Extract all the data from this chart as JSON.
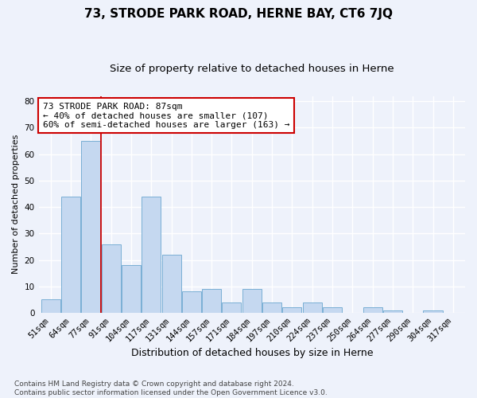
{
  "title": "73, STRODE PARK ROAD, HERNE BAY, CT6 7JQ",
  "subtitle": "Size of property relative to detached houses in Herne",
  "xlabel": "Distribution of detached houses by size in Herne",
  "ylabel": "Number of detached properties",
  "categories": [
    "51sqm",
    "64sqm",
    "77sqm",
    "91sqm",
    "104sqm",
    "117sqm",
    "131sqm",
    "144sqm",
    "157sqm",
    "171sqm",
    "184sqm",
    "197sqm",
    "210sqm",
    "224sqm",
    "237sqm",
    "250sqm",
    "264sqm",
    "277sqm",
    "290sqm",
    "304sqm",
    "317sqm"
  ],
  "values": [
    5,
    44,
    65,
    26,
    18,
    44,
    22,
    8,
    9,
    4,
    9,
    4,
    2,
    4,
    2,
    0,
    2,
    1,
    0,
    1,
    0
  ],
  "bar_color": "#c5d8f0",
  "bar_edge_color": "#7aafd4",
  "vline_index": 2.5,
  "vline_color": "#cc0000",
  "annotation_text": "73 STRODE PARK ROAD: 87sqm\n← 40% of detached houses are smaller (107)\n60% of semi-detached houses are larger (163) →",
  "annotation_box_color": "#ffffff",
  "annotation_box_edge": "#cc0000",
  "ylim": [
    0,
    82
  ],
  "yticks": [
    0,
    10,
    20,
    30,
    40,
    50,
    60,
    70,
    80
  ],
  "footer": "Contains HM Land Registry data © Crown copyright and database right 2024.\nContains public sector information licensed under the Open Government Licence v3.0.",
  "bg_color": "#eef2fb",
  "grid_color": "#ffffff",
  "title_fontsize": 11,
  "subtitle_fontsize": 9.5,
  "xlabel_fontsize": 9,
  "ylabel_fontsize": 8,
  "tick_fontsize": 7.5,
  "annotation_fontsize": 8,
  "footer_fontsize": 6.5
}
